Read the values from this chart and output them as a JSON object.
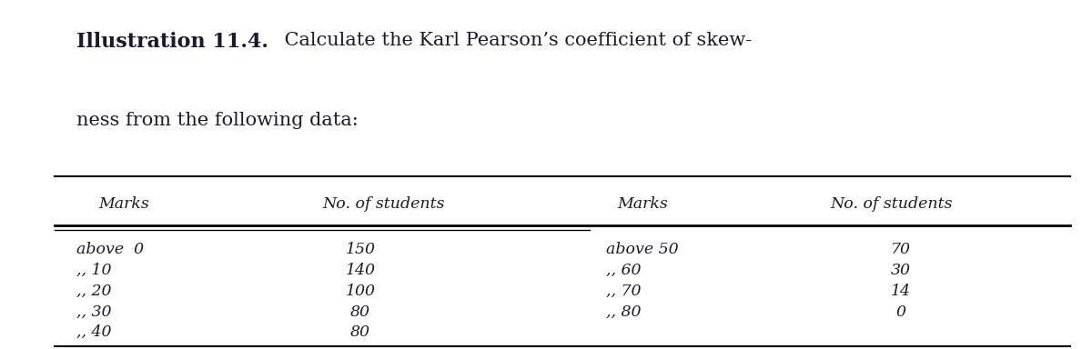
{
  "title_bold": "Illustration 11.4.",
  "title_rest": " Calculate the Karl Pearson’s coefficient of skew-",
  "title_line2": "ness from the following data:",
  "col_headers": [
    "Marks",
    "No. of students",
    "Marks",
    "No. of students"
  ],
  "left_marks_labels": [
    "above  0",
    ",, 10",
    ",, 20",
    ",, 30",
    ",, 40"
  ],
  "left_students": [
    "150",
    "140",
    "100",
    "80",
    "80"
  ],
  "right_marks_labels": [
    "above 50",
    ",, 60",
    ",, 70",
    ",, 80"
  ],
  "right_students": [
    "70",
    "30",
    "14",
    "0"
  ],
  "bg_color": "#ffffff",
  "text_color": "#1a1a2e"
}
